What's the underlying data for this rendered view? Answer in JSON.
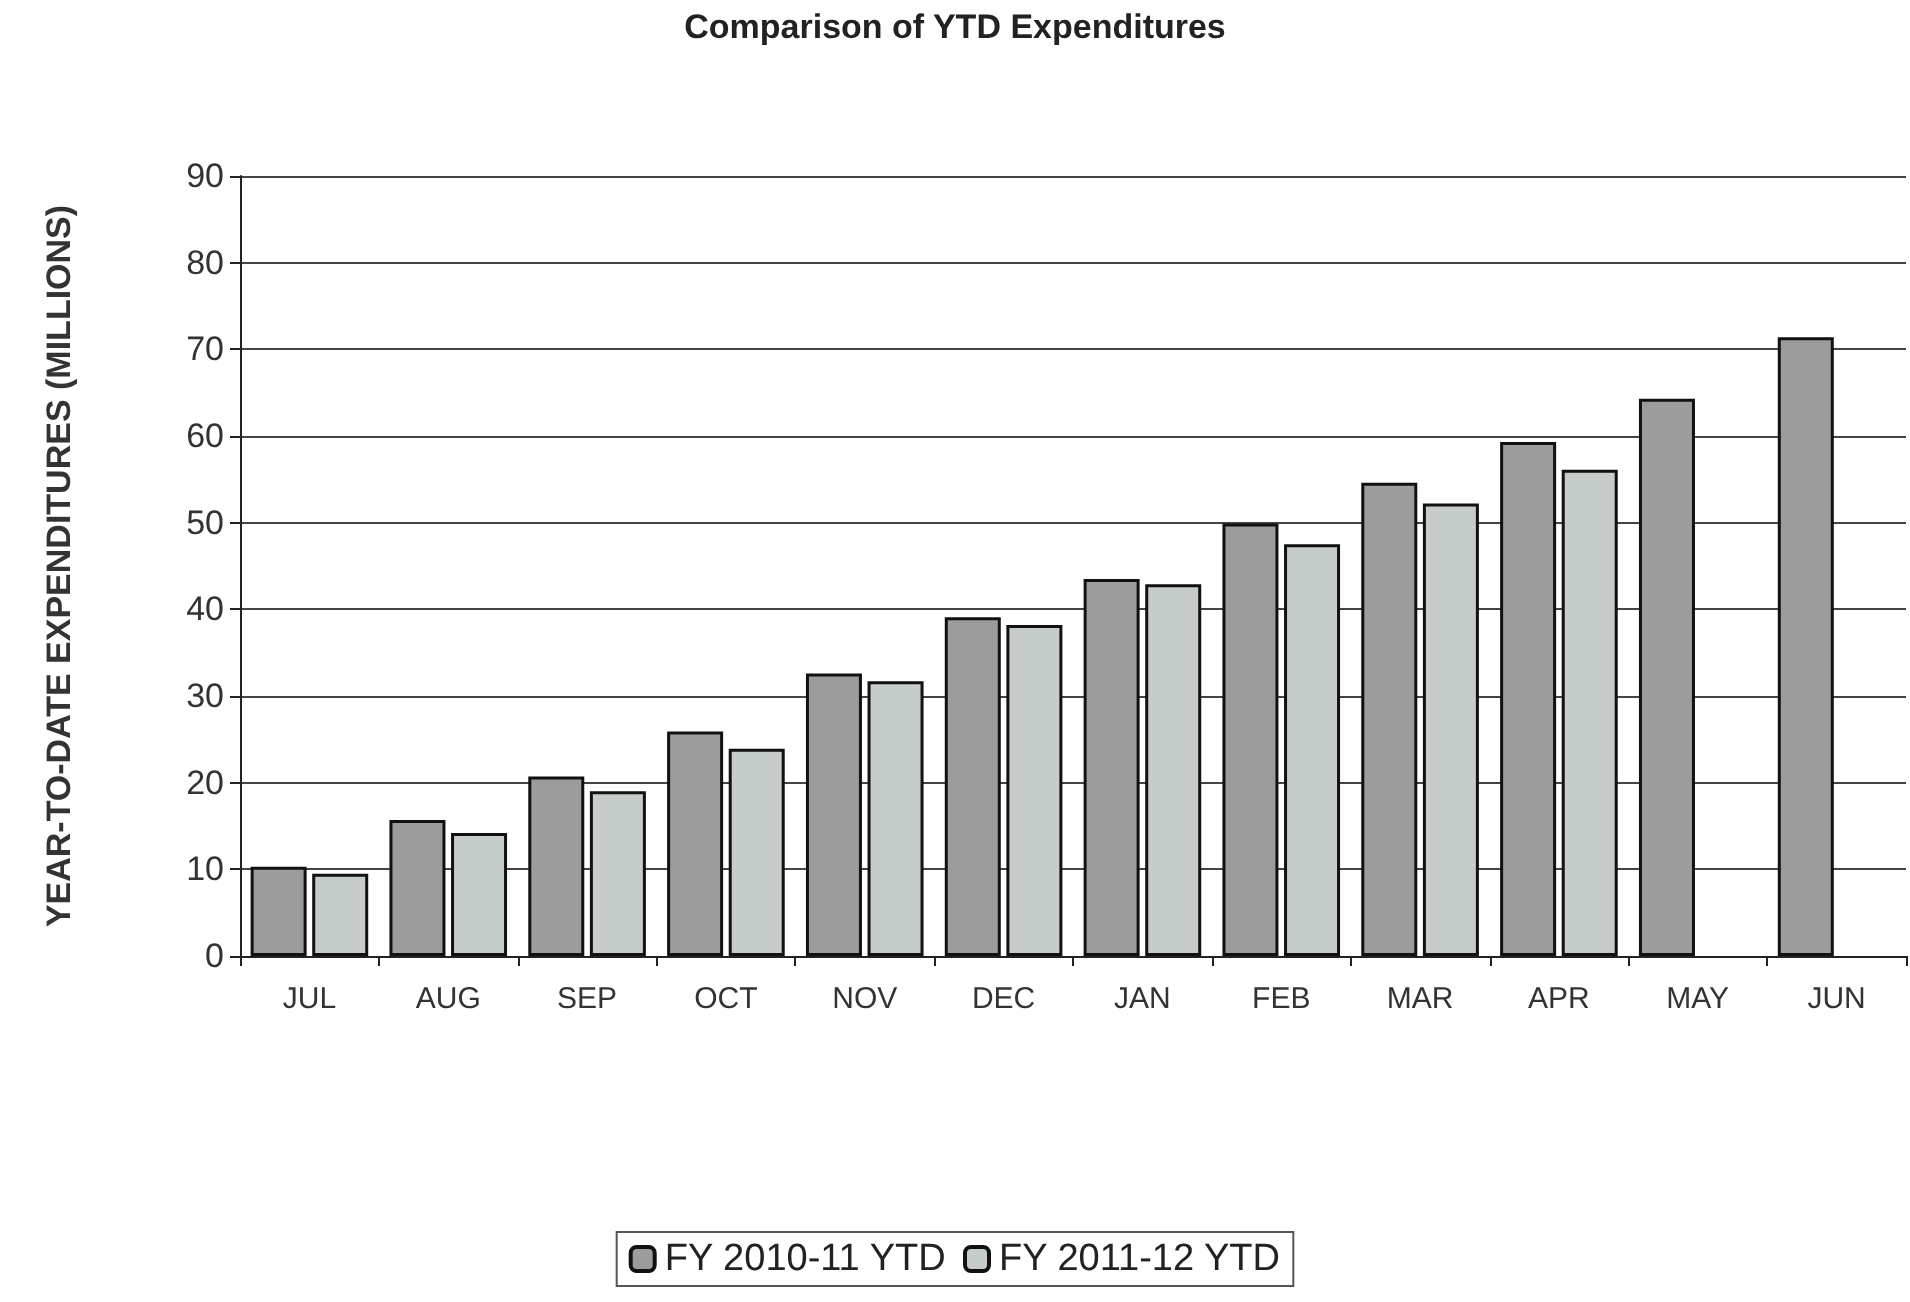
{
  "chart_data": {
    "type": "bar",
    "title": "Comparison of YTD Expenditures",
    "ylabel": "YEAR-TO-DATE EXPENDITURES (MILLIONS)",
    "categories": [
      "JUL",
      "AUG",
      "SEP",
      "OCT",
      "NOV",
      "DEC",
      "JAN",
      "FEB",
      "MAR",
      "APR",
      "MAY",
      "JUN"
    ],
    "series": [
      {
        "name": "FY 2010-11 YTD",
        "color": "#9c9c9c",
        "values": [
          10.3,
          15.7,
          20.7,
          25.9,
          32.6,
          39.1,
          43.5,
          49.9,
          54.6,
          59.3,
          64.3,
          71.4
        ]
      },
      {
        "name": "FY 2011-12 YTD",
        "color": "#c5ccc9",
        "values": [
          9.5,
          14.2,
          19.0,
          23.9,
          31.7,
          38.2,
          42.9,
          47.5,
          52.2,
          56.1,
          null,
          null
        ]
      }
    ],
    "ylim": [
      0,
      90
    ],
    "yticks": [
      0,
      10,
      20,
      30,
      40,
      50,
      60,
      70,
      80,
      90
    ],
    "grid": "y",
    "legend": "bottom"
  }
}
